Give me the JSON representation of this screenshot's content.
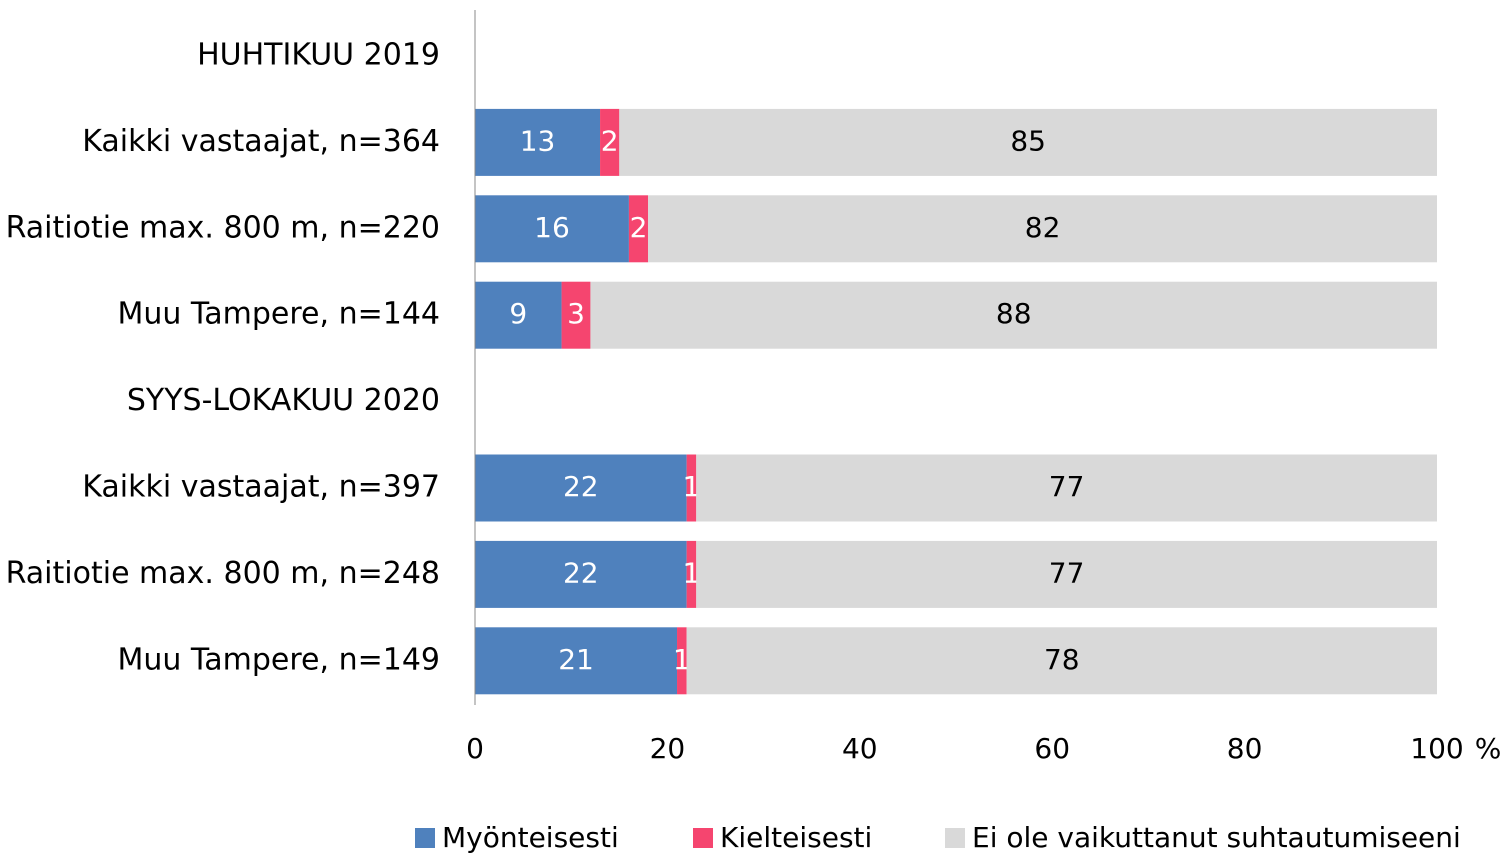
{
  "chart_data": {
    "type": "stacked_barh",
    "categories": [
      "HUHTIKUU 2019",
      "Kaikki vastaajat, n=364",
      "Raitiotie max. 800 m, n=220",
      "Muu Tampere, n=144",
      "SYYS-LOKAKUU 2020",
      "Kaikki vastaajat, n=397",
      "Raitiotie max. 800 m, n=248",
      "Muu Tampere, n=149"
    ],
    "series": [
      {
        "name": "Myönteisesti",
        "color": "#4f81bd",
        "label_color": "#ffffff",
        "values": [
          null,
          13,
          16,
          9,
          null,
          22,
          22,
          21
        ]
      },
      {
        "name": "Kielteisesti",
        "color": "#f5456f",
        "label_color": "#ffffff",
        "values": [
          null,
          2,
          2,
          3,
          null,
          1,
          1,
          1
        ]
      },
      {
        "name": "Ei ole vaikuttanut suhtautumiseeni",
        "color": "#d9d9d9",
        "label_color": "#000000",
        "values": [
          null,
          85,
          82,
          88,
          null,
          77,
          77,
          78
        ]
      }
    ],
    "xlim": [
      0,
      100
    ],
    "xticks": [
      0,
      20,
      40,
      60,
      80,
      100
    ],
    "xlabel": "%",
    "legend": "bottom"
  }
}
